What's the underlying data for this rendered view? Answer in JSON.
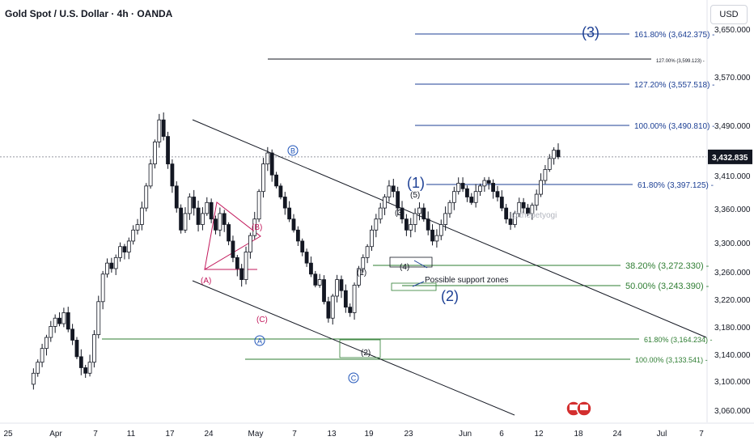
{
  "header": {
    "title": "Gold Spot / U.S. Dollar · 4h · OANDA",
    "currency": "USD"
  },
  "colors": {
    "candle": "#131722",
    "fib_blue": "#1c3f94",
    "fib_green": "#2e7d32",
    "trend": "#131722",
    "price_tag_bg": "#131722",
    "red_triangle": "#c2185b",
    "wave_c_blue": "#1e53b8"
  },
  "chart_data": {
    "type": "candlestick",
    "title": "Gold Spot / U.S. Dollar · 4h · OANDA",
    "x_ticks": [
      "25",
      "Apr",
      "7",
      "11",
      "17",
      "24",
      "May",
      "7",
      "13",
      "19",
      "23",
      "Jun",
      "6",
      "12",
      "18",
      "24",
      "Jul",
      "7"
    ],
    "y_ticks": [
      "3,650.000",
      "3,570.000",
      "3,490.000",
      "3,410.000",
      "3,360.000",
      "3,300.000",
      "3,260.000",
      "3,220.000",
      "3,180.000",
      "3,140.000",
      "3,100.000",
      "3,060.000"
    ],
    "last_price": "3,432.835",
    "candles_path": [
      3020,
      3040,
      3060,
      3085,
      3105,
      3125,
      3140,
      3130,
      3150,
      3120,
      3100,
      3070,
      3050,
      3040,
      3060,
      3110,
      3170,
      3220,
      3240,
      3230,
      3250,
      3270,
      3260,
      3280,
      3300,
      3310,
      3340,
      3380,
      3420,
      3460,
      3500,
      3470,
      3420,
      3380,
      3340,
      3300,
      3330,
      3360,
      3340,
      3310,
      3330,
      3350,
      3320,
      3300,
      3330,
      3310,
      3280,
      3250,
      3230,
      3210,
      3260,
      3290,
      3320,
      3370,
      3420,
      3440,
      3400,
      3380,
      3360,
      3340,
      3320,
      3300,
      3280,
      3260,
      3240,
      3220,
      3200,
      3210,
      3170,
      3140,
      3180,
      3210,
      3190,
      3160,
      3150,
      3200,
      3230,
      3250,
      3270,
      3300,
      3320,
      3340,
      3360,
      3380,
      3370,
      3340,
      3320,
      3300,
      3310,
      3330,
      3340,
      3320,
      3300,
      3280,
      3290,
      3310,
      3330,
      3350,
      3370,
      3385,
      3375,
      3360,
      3350,
      3370,
      3380,
      3390,
      3385,
      3370,
      3360,
      3340,
      3320,
      3310,
      3330,
      3350,
      3340,
      3330,
      3345,
      3365,
      3390,
      3410,
      3430,
      3445,
      3433
    ],
    "fib_levels": [
      {
        "label": "161.80% (3,642.375)",
        "color_key": "fib_blue"
      },
      {
        "label": "127.00% (3,599.123)",
        "color_key": "trend"
      },
      {
        "label": "127.20% (3,557.518)",
        "color_key": "fib_blue"
      },
      {
        "label": "100.00% (3,490.810)",
        "color_key": "fib_blue"
      },
      {
        "label": "61.80% (3,397.125)",
        "color_key": "fib_blue"
      },
      {
        "label": "38.20% (3,272.330)",
        "color_key": "fib_green"
      },
      {
        "label": "50.00% (3,243.390)",
        "color_key": "fib_green"
      },
      {
        "label": "61.80% (3,164.234)",
        "color_key": "fib_green"
      },
      {
        "label": "100.00% (3,133.541)",
        "color_key": "fib_green"
      }
    ],
    "wave_labels": {
      "big_3": "(3)",
      "big_1": "(1)",
      "big_2": "(2)",
      "circle_b": "B",
      "circle_a": "A",
      "circle_c": "C",
      "A_paren": "(A)",
      "B_paren": "(B)",
      "C_paren": "(C)",
      "w1": "(1)",
      "w2": "(2)",
      "w3": "(3)",
      "w4": "(4)",
      "w5": "(5)"
    },
    "annotations": {
      "support_zones": "Possible support zones",
      "watermark": "@thepetyogi"
    }
  }
}
